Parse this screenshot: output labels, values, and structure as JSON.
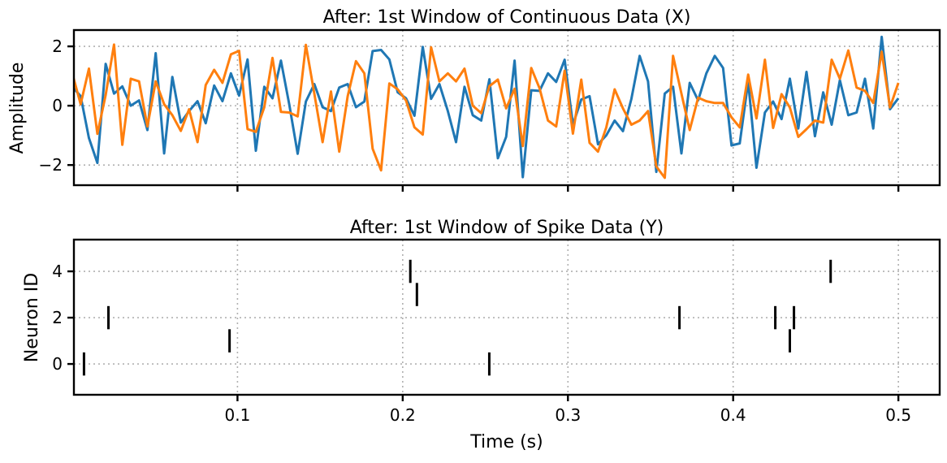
{
  "chart_data": [
    {
      "type": "line",
      "title": "After: 1st Window of Continuous Data (X)",
      "xlabel": "",
      "ylabel": "Amplitude",
      "xlim": [
        0.001,
        0.525
      ],
      "ylim": [
        -2.68,
        2.55
      ],
      "xticks": [
        0.1,
        0.2,
        0.3,
        0.4,
        0.5
      ],
      "xtick_labels_shown": false,
      "yticks": [
        -2,
        0,
        2
      ],
      "ytick_labels": [
        "−2",
        "0",
        "2"
      ],
      "grid": true,
      "grid_style": "dotted",
      "x": [
        0,
        0.0051,
        0.0101,
        0.0152,
        0.0202,
        0.0253,
        0.0303,
        0.0354,
        0.0404,
        0.0455,
        0.0505,
        0.0556,
        0.0606,
        0.0657,
        0.0707,
        0.0758,
        0.0808,
        0.0859,
        0.0909,
        0.096,
        0.101,
        0.1061,
        0.1111,
        0.1162,
        0.1212,
        0.1263,
        0.1313,
        0.1364,
        0.1414,
        0.1465,
        0.1515,
        0.1566,
        0.1616,
        0.1667,
        0.1717,
        0.1768,
        0.1818,
        0.1869,
        0.1919,
        0.197,
        0.202,
        0.2071,
        0.2121,
        0.2172,
        0.2222,
        0.2273,
        0.2323,
        0.2374,
        0.2424,
        0.2475,
        0.2525,
        0.2576,
        0.2626,
        0.2677,
        0.2727,
        0.2778,
        0.2828,
        0.2879,
        0.2929,
        0.298,
        0.303,
        0.3081,
        0.3131,
        0.3182,
        0.3232,
        0.3283,
        0.3333,
        0.3384,
        0.3434,
        0.3485,
        0.3535,
        0.3586,
        0.3636,
        0.3687,
        0.3737,
        0.3788,
        0.3838,
        0.3889,
        0.3939,
        0.399,
        0.404,
        0.4091,
        0.4141,
        0.4192,
        0.4242,
        0.4293,
        0.4343,
        0.4394,
        0.4444,
        0.4495,
        0.4545,
        0.4596,
        0.4646,
        0.4697,
        0.4747,
        0.4798,
        0.4848,
        0.4899,
        0.4949,
        0.5
      ],
      "series": [
        {
          "color": "#1f77b4",
          "values": [
            0.64,
            0.32,
            -1.09,
            -1.93,
            1.41,
            0.41,
            0.65,
            0,
            0.18,
            -0.82,
            1.77,
            -1.61,
            0.97,
            -0.57,
            -0.18,
            0.15,
            -0.59,
            0.68,
            0.15,
            1.09,
            0.34,
            1.56,
            -1.52,
            0.64,
            0.25,
            1.52,
            0.05,
            -1.62,
            0.14,
            0.73,
            -0.05,
            -0.18,
            0.61,
            0.73,
            -0.05,
            0.14,
            1.84,
            1.88,
            1.56,
            0.45,
            0.25,
            -0.34,
            1.98,
            0.23,
            0.73,
            -0.18,
            -1.23,
            0.64,
            -0.32,
            -0.5,
            0.89,
            -1.77,
            -1.05,
            1.52,
            -2.41,
            0.52,
            0.5,
            1.09,
            0.8,
            1.55,
            -0.64,
            0.21,
            0.32,
            -1.3,
            -1.0,
            -0.5,
            -0.86,
            0.23,
            1.68,
            0.82,
            -2.23,
            0.41,
            0.64,
            -1.61,
            0.77,
            0.18,
            1.09,
            1.68,
            1.27,
            -1.34,
            -1.27,
            0.82,
            -2.09,
            -0.23,
            0.14,
            -0.45,
            0.91,
            -0.77,
            1.14,
            -1.03,
            0.45,
            -0.64,
            0.86,
            -0.32,
            -0.23,
            0.91,
            -0.77,
            2.32,
            -0.12,
            0.25
          ]
        },
        {
          "color": "#ff7f0e",
          "values": [
            1.09,
            0.05,
            1.25,
            -0.95,
            0.36,
            2.06,
            -1.32,
            0.91,
            0.82,
            -0.7,
            0.82,
            0.05,
            -0.32,
            -0.85,
            -0.12,
            -1.23,
            0.7,
            1.21,
            0.77,
            1.73,
            1.85,
            -0.79,
            -0.88,
            -0.05,
            1.61,
            -0.21,
            -0.23,
            -0.36,
            2.05,
            0.41,
            -1.23,
            0.48,
            -1.55,
            0.32,
            1.5,
            1.09,
            -1.45,
            -2.18,
            0.75,
            0.55,
            0.18,
            -0.73,
            -0.97,
            1.97,
            0.82,
            1.09,
            0.82,
            1.25,
            0,
            -0.25,
            0.66,
            0.88,
            -0.09,
            0.57,
            -1.36,
            1.27,
            0.59,
            -0.5,
            -0.7,
            1.18,
            -0.94,
            0.88,
            -1.25,
            -1.55,
            -0.73,
            0.55,
            -0.09,
            -0.64,
            -0.5,
            -0.18,
            -2.05,
            -2.43,
            1.68,
            0.41,
            -0.82,
            0.27,
            0.15,
            0.09,
            0.09,
            -0.39,
            -0.73,
            1.05,
            -0.43,
            1.55,
            -0.75,
            0.39,
            -0.06,
            -1.05,
            -0.79,
            -0.5,
            -0.57,
            1.55,
            0.91,
            1.86,
            0.61,
            0.5,
            0.09,
            1.82,
            -0.06,
            0.77
          ]
        }
      ]
    },
    {
      "type": "scatter",
      "marker": "vertical-line",
      "title": "After: 1st Window of Spike Data (Y)",
      "xlabel": "Time (s)",
      "ylabel": "Neuron ID",
      "xlim": [
        0.001,
        0.525
      ],
      "ylim": [
        -1.33,
        5.37
      ],
      "xticks": [
        0.1,
        0.2,
        0.3,
        0.4,
        0.5
      ],
      "xtick_labels": [
        "0.1",
        "0.2",
        "0.3",
        "0.4",
        "0.5"
      ],
      "yticks": [
        0,
        2,
        4
      ],
      "ytick_labels": [
        "0",
        "2",
        "4"
      ],
      "grid": true,
      "grid_style": "dotted",
      "color": "#000000",
      "points": [
        {
          "t": 0.0071,
          "neuron": 0
        },
        {
          "t": 0.0219,
          "neuron": 2
        },
        {
          "t": 0.0952,
          "neuron": 1
        },
        {
          "t": 0.2046,
          "neuron": 4
        },
        {
          "t": 0.2086,
          "neuron": 3
        },
        {
          "t": 0.2524,
          "neuron": 0
        },
        {
          "t": 0.3675,
          "neuron": 2
        },
        {
          "t": 0.4255,
          "neuron": 2
        },
        {
          "t": 0.4343,
          "neuron": 1
        },
        {
          "t": 0.4368,
          "neuron": 2
        },
        {
          "t": 0.459,
          "neuron": 4
        }
      ]
    }
  ]
}
